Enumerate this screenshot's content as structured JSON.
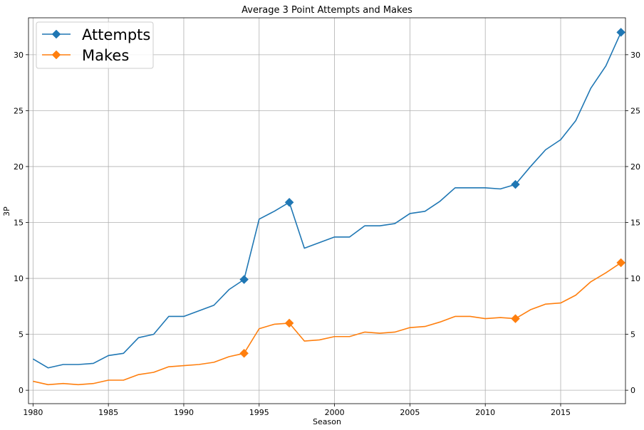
{
  "chart_data": {
    "type": "line",
    "title": "Average 3 Point Attempts and Makes",
    "xlabel": "Season",
    "ylabel": "3P",
    "xlim": [
      1979.7,
      2019.3
    ],
    "ylim": [
      -1.2,
      33.3
    ],
    "xticks": [
      1980,
      1985,
      1990,
      1995,
      2000,
      2005,
      2010,
      2015
    ],
    "yticks": [
      0,
      5,
      10,
      15,
      20,
      25,
      30
    ],
    "grid": true,
    "legend_position": "top-left",
    "x": [
      1980,
      1981,
      1982,
      1983,
      1984,
      1985,
      1986,
      1987,
      1988,
      1989,
      1990,
      1991,
      1992,
      1993,
      1994,
      1995,
      1996,
      1997,
      1998,
      1999,
      2000,
      2001,
      2002,
      2003,
      2004,
      2005,
      2006,
      2007,
      2008,
      2009,
      2010,
      2011,
      2012,
      2013,
      2014,
      2015,
      2016,
      2017,
      2018,
      2019
    ],
    "series": [
      {
        "name": "Attempts",
        "color": "#1f77b4",
        "values": [
          2.8,
          2.0,
          2.3,
          2.3,
          2.4,
          3.1,
          3.3,
          4.7,
          5.0,
          6.6,
          6.6,
          7.1,
          7.6,
          9.0,
          9.9,
          15.3,
          16.0,
          16.8,
          12.7,
          13.2,
          13.7,
          13.7,
          14.7,
          14.7,
          14.9,
          15.8,
          16.0,
          16.9,
          18.1,
          18.1,
          18.1,
          18.0,
          18.4,
          20.0,
          21.5,
          22.4,
          24.1,
          27.0,
          29.0,
          32.0
        ],
        "markers": [
          1994,
          1997,
          2012,
          2019
        ]
      },
      {
        "name": "Makes",
        "color": "#ff7f0e",
        "values": [
          0.8,
          0.5,
          0.6,
          0.5,
          0.6,
          0.9,
          0.9,
          1.4,
          1.6,
          2.1,
          2.2,
          2.3,
          2.5,
          3.0,
          3.3,
          5.5,
          5.9,
          6.0,
          4.4,
          4.5,
          4.8,
          4.8,
          5.2,
          5.1,
          5.2,
          5.6,
          5.7,
          6.1,
          6.6,
          6.6,
          6.4,
          6.5,
          6.4,
          7.2,
          7.7,
          7.8,
          8.5,
          9.7,
          10.5,
          11.4
        ],
        "markers": [
          1994,
          1997,
          2012,
          2019
        ]
      }
    ]
  }
}
